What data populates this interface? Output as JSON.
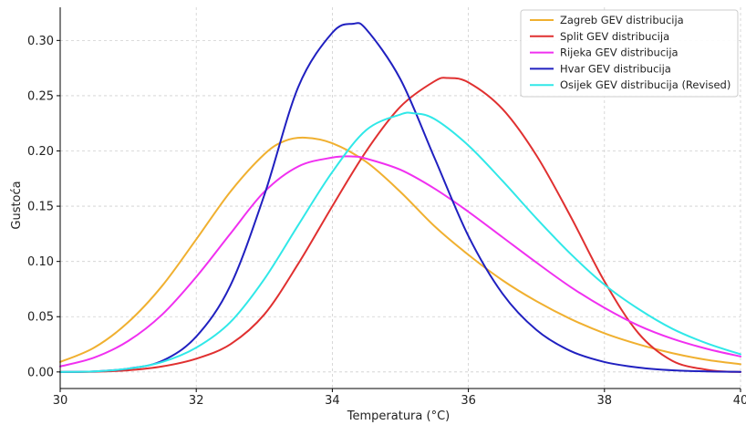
{
  "chart_data": {
    "type": "line",
    "title": "",
    "xlabel": "Temperatura (°C)",
    "ylabel": "Gustoća",
    "xlim": [
      30,
      40
    ],
    "ylim": [
      -0.015,
      0.33
    ],
    "grid": true,
    "legend_position": "top-right",
    "x_ticks": [
      "30",
      "32",
      "34",
      "36",
      "38",
      "40"
    ],
    "y_ticks": [
      "0.00",
      "0.05",
      "0.10",
      "0.15",
      "0.20",
      "0.25",
      "0.30"
    ],
    "series": [
      {
        "name": "Zagreb GEV distribucija",
        "color": "#f0b030",
        "x": [
          30,
          30.5,
          31,
          31.5,
          32,
          32.5,
          33,
          33.3,
          33.6,
          34,
          34.5,
          35,
          35.5,
          36,
          36.5,
          37,
          37.5,
          38,
          38.5,
          39,
          39.5,
          40
        ],
        "y": [
          0.009,
          0.022,
          0.045,
          0.078,
          0.12,
          0.163,
          0.197,
          0.209,
          0.212,
          0.207,
          0.19,
          0.163,
          0.132,
          0.106,
          0.083,
          0.064,
          0.048,
          0.035,
          0.025,
          0.017,
          0.011,
          0.007
        ]
      },
      {
        "name": "Split GEV distribucija",
        "color": "#e03030",
        "x": [
          30,
          30.5,
          31,
          31.5,
          32,
          32.5,
          33,
          33.5,
          34,
          34.5,
          35,
          35.5,
          35.7,
          36,
          36.5,
          37,
          37.5,
          38,
          38.5,
          39,
          39.5,
          39.8,
          40
        ],
        "y": [
          0.0,
          0.0002,
          0.0015,
          0.005,
          0.012,
          0.025,
          0.052,
          0.098,
          0.15,
          0.2,
          0.24,
          0.263,
          0.266,
          0.262,
          0.238,
          0.196,
          0.141,
          0.082,
          0.035,
          0.01,
          0.002,
          0.0003,
          0.0
        ]
      },
      {
        "name": "Rijeka GEV distribucija",
        "color": "#f030f0",
        "x": [
          30,
          30.5,
          31,
          31.5,
          32,
          32.5,
          33,
          33.5,
          34,
          34.3,
          34.5,
          35,
          35.5,
          36,
          36.5,
          37,
          37.5,
          38,
          38.5,
          39,
          39.5,
          40
        ],
        "y": [
          0.005,
          0.013,
          0.028,
          0.052,
          0.086,
          0.125,
          0.163,
          0.186,
          0.194,
          0.195,
          0.193,
          0.183,
          0.166,
          0.145,
          0.122,
          0.099,
          0.077,
          0.058,
          0.042,
          0.03,
          0.021,
          0.014
        ]
      },
      {
        "name": "Hvar GEV distribucija",
        "color": "#2020c0",
        "x": [
          30,
          30.5,
          31,
          31.5,
          32,
          32.5,
          33,
          33.5,
          34,
          34.3,
          34.5,
          35,
          35.5,
          36,
          36.5,
          37,
          37.5,
          38,
          38.5,
          39,
          39.5,
          40
        ],
        "y": [
          0.0,
          0.0005,
          0.003,
          0.01,
          0.032,
          0.078,
          0.16,
          0.258,
          0.307,
          0.315,
          0.31,
          0.265,
          0.194,
          0.123,
          0.071,
          0.038,
          0.019,
          0.009,
          0.004,
          0.0015,
          0.0005,
          0.0001
        ]
      },
      {
        "name": "Osijek GEV distribucija (Revised)",
        "color": "#30e8e8",
        "x": [
          30,
          30.5,
          31,
          31.5,
          32,
          32.5,
          33,
          33.5,
          34,
          34.5,
          35,
          35.2,
          35.5,
          36,
          36.5,
          37,
          37.5,
          38,
          38.5,
          39,
          39.5,
          40
        ],
        "y": [
          0.0,
          0.0005,
          0.003,
          0.009,
          0.022,
          0.045,
          0.084,
          0.133,
          0.181,
          0.219,
          0.233,
          0.234,
          0.229,
          0.205,
          0.173,
          0.139,
          0.107,
          0.079,
          0.057,
          0.039,
          0.026,
          0.016
        ]
      }
    ]
  }
}
